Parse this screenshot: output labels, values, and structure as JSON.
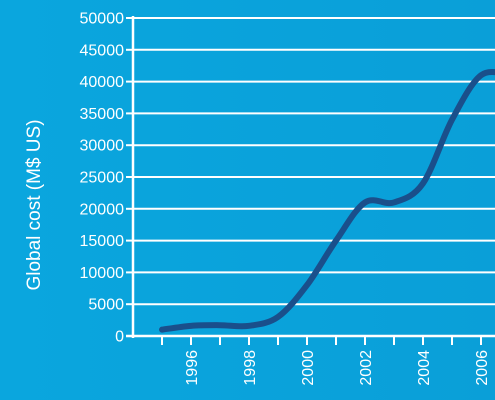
{
  "chart_data": {
    "type": "line",
    "title": "",
    "xlabel": "",
    "ylabel": "Global cost (M$ US)",
    "ylim": [
      0,
      50000
    ],
    "yticks": [
      "0",
      "5000",
      "10000",
      "15000",
      "20000",
      "25000",
      "30000",
      "35000",
      "40000",
      "45000",
      "50000"
    ],
    "xticks": [
      "1996",
      "1998",
      "2000",
      "2002",
      "2004",
      "2006"
    ],
    "grid": "horizontal",
    "series": [
      {
        "color": "#1a4f8b",
        "x": [
          1995,
          1996,
          1997,
          1998,
          1999,
          2000,
          2001,
          2002,
          2003,
          2004,
          2005,
          2006,
          2007
        ],
        "y": [
          1000,
          1600,
          1700,
          1600,
          3000,
          8000,
          15000,
          21000,
          21000,
          24000,
          34000,
          41000,
          41000
        ]
      }
    ],
    "colors": {
      "background": "#0aa6de",
      "grid": "#ffffff",
      "axis": "#ffffff",
      "line": "#1a4f8b"
    }
  }
}
